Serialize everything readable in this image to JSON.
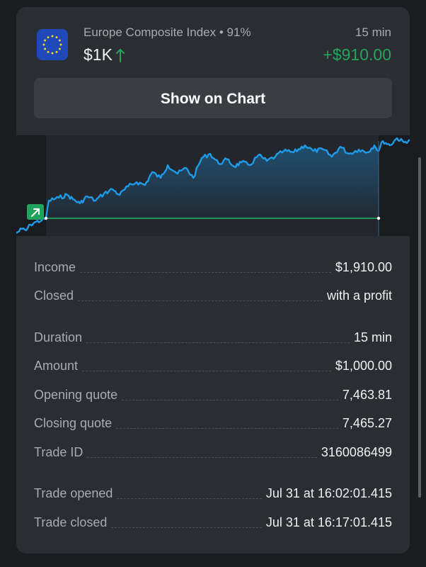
{
  "header": {
    "asset_name": "Europe Composite Index",
    "payout": "91%",
    "amount": "$1K",
    "duration": "15 min",
    "profit": "+$910.00",
    "flag_icon": "eu-flag-icon",
    "direction_icon": "arrow-up-icon",
    "profit_color": "#23a65a"
  },
  "button": {
    "show_chart": "Show on Chart"
  },
  "chart_data": {
    "type": "line",
    "trend": "up",
    "entry_badge_icon": "arrow-up-right-icon",
    "line_color": "#1e9be8",
    "entry_line_color": "#1fb56a"
  },
  "details": {
    "income": {
      "label": "Income",
      "value": "$1,910.00"
    },
    "closed": {
      "label": "Closed",
      "value": "with a profit"
    },
    "duration": {
      "label": "Duration",
      "value": "15 min"
    },
    "amount": {
      "label": "Amount",
      "value": "$1,000.00"
    },
    "opening_quote": {
      "label": "Opening quote",
      "value": "7,463.81"
    },
    "closing_quote": {
      "label": "Closing quote",
      "value": "7,465.27"
    },
    "trade_id": {
      "label": "Trade ID",
      "value": "3160086499"
    },
    "trade_opened": {
      "label": "Trade opened",
      "value": "Jul 31 at 16:02:01.415"
    },
    "trade_closed": {
      "label": "Trade closed",
      "value": "Jul 31 at 16:17:01.415"
    }
  }
}
